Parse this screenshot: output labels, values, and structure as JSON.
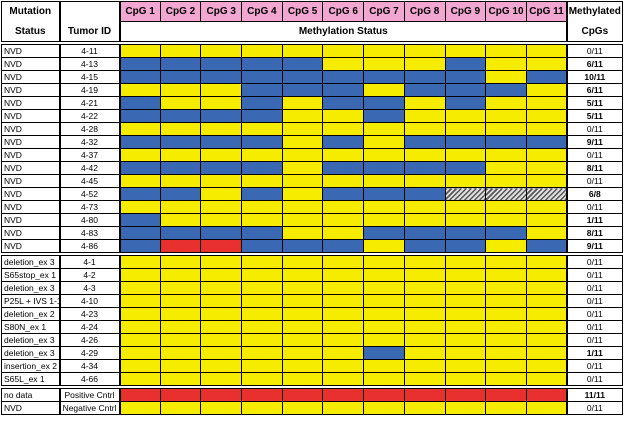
{
  "chart_data": {
    "type": "heatmap",
    "headers": {
      "mutation": [
        "Mutation",
        "Status"
      ],
      "tumor_id": "Tumor ID",
      "cpgs": [
        "CpG 1",
        "CpG 2",
        "CpG 3",
        "CpG 4",
        "CpG 5",
        "CpG 6",
        "CpG 7",
        "CpG 8",
        "CpG 9",
        "CpG 10",
        "CpG 11"
      ],
      "methylation_status": "Methylation Status",
      "methylated": [
        "Methylated",
        "CpGs"
      ]
    },
    "legend_colors": {
      "unmethylated": "#f5ec00",
      "methylated": "#3b68b3",
      "fully_methylated_control": "#e8302f",
      "no_data": "hatched"
    },
    "cell_codes": {
      "Y": "yellow",
      "B": "blue",
      "R": "red",
      "H": "hatched"
    },
    "groups": [
      {
        "rows": [
          {
            "mutation": "NVD",
            "tumor": "4-11",
            "cells": "YYYYYYYYYYY",
            "methylated": "0/11"
          },
          {
            "mutation": "NVD",
            "tumor": "4-13",
            "cells": "BBBBBYYYBYY",
            "methylated": "6/11"
          },
          {
            "mutation": "NVD",
            "tumor": "4-15",
            "cells": "BBBBBBBBBYB",
            "methylated": "10/11"
          },
          {
            "mutation": "NVD",
            "tumor": "4-19",
            "cells": "YYYBBBYBBBY",
            "methylated": "6/11"
          },
          {
            "mutation": "NVD",
            "tumor": "4-21",
            "cells": "BYYBYBBYBYY",
            "methylated": "5/11"
          },
          {
            "mutation": "NVD",
            "tumor": "4-22",
            "cells": "BBBBYYBYYYY",
            "methylated": "5/11"
          },
          {
            "mutation": "NVD",
            "tumor": "4-28",
            "cells": "YYYYYYYYYYY",
            "methylated": "0/11"
          },
          {
            "mutation": "NVD",
            "tumor": "4-32",
            "cells": "BBBBYBYBBBB",
            "methylated": "9/11"
          },
          {
            "mutation": "NVD",
            "tumor": "4-37",
            "cells": "YYYYYYYYYYY",
            "methylated": "0/11"
          },
          {
            "mutation": "NVD",
            "tumor": "4-42",
            "cells": "BBBBYBBBBYY",
            "methylated": "8/11"
          },
          {
            "mutation": "NVD",
            "tumor": "4-45",
            "cells": "YYYYYYYYYYY",
            "methylated": "0/11"
          },
          {
            "mutation": "NVD",
            "tumor": "4-52",
            "cells": "BBYBYBBBHHH",
            "methylated": "6/8"
          },
          {
            "mutation": "NVD",
            "tumor": "4-73",
            "cells": "YYYYYYYYYYY",
            "methylated": "0/11"
          },
          {
            "mutation": "NVD",
            "tumor": "4-80",
            "cells": "BYYYYYYYYYY",
            "methylated": "1/11"
          },
          {
            "mutation": "NVD",
            "tumor": "4-83",
            "cells": "BBBBYYBBBBY",
            "methylated": "8/11"
          },
          {
            "mutation": "NVD",
            "tumor": "4-86",
            "cells": "BRRBBBYBBYB",
            "methylated": "9/11"
          }
        ]
      },
      {
        "rows": [
          {
            "mutation": "deletion_ex 3",
            "tumor": "4-1",
            "cells": "YYYYYYYYYYY",
            "methylated": "0/11"
          },
          {
            "mutation": "S65stop_ex 1",
            "tumor": "4-2",
            "cells": "YYYYYYYYYYY",
            "methylated": "0/11"
          },
          {
            "mutation": "deletion_ex 3",
            "tumor": "4-3",
            "cells": "YYYYYYYYYYY",
            "methylated": "0/11"
          },
          {
            "mutation": "P25L + IVS 1-1",
            "tumor": "4-10",
            "cells": "YYYYYYYYYYY",
            "methylated": "0/11"
          },
          {
            "mutation": "deletion_ex 2",
            "tumor": "4-23",
            "cells": "YYYYYYYYYYY",
            "methylated": "0/11"
          },
          {
            "mutation": "S80N_ex 1",
            "tumor": "4-24",
            "cells": "YYYYYYYYYYY",
            "methylated": "0/11"
          },
          {
            "mutation": "deletion_ex 3",
            "tumor": "4-26",
            "cells": "YYYYYYYYYYY",
            "methylated": "0/11"
          },
          {
            "mutation": "deletion_ex 3",
            "tumor": "4-29",
            "cells": "YYYYYYBYYYY",
            "methylated": "1/11"
          },
          {
            "mutation": "insertion_ex 2",
            "tumor": "4-34",
            "cells": "YYYYYYYYYYY",
            "methylated": "0/11"
          },
          {
            "mutation": "S65L_ex 1",
            "tumor": "4-66",
            "cells": "YYYYYYYYYYY",
            "methylated": "0/11"
          }
        ]
      },
      {
        "rows": [
          {
            "mutation": "no data",
            "tumor": "Positive Cntrl",
            "cells": "RRRRRRRRRRR",
            "methylated": "11/11"
          },
          {
            "mutation": "NVD",
            "tumor": "Negative Cntrl",
            "cells": "YYYYYYYYYYY",
            "methylated": "0/11"
          }
        ]
      }
    ]
  }
}
